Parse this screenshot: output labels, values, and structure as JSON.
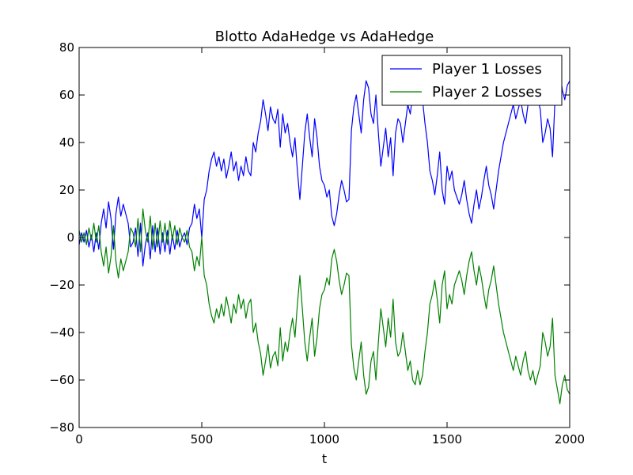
{
  "chart_data": {
    "type": "line",
    "title": "Blotto AdaHedge vs AdaHedge",
    "xlabel": "t",
    "ylabel": "",
    "xlim": [
      0,
      2000
    ],
    "ylim": [
      -80,
      80
    ],
    "xticks": [
      0,
      500,
      1000,
      1500,
      2000
    ],
    "xtick_labels": [
      "0",
      "500",
      "1000",
      "1500",
      "2000"
    ],
    "yticks": [
      -80,
      -60,
      -40,
      -20,
      0,
      20,
      40,
      60,
      80
    ],
    "ytick_labels": [
      "−80",
      "−60",
      "−40",
      "−20",
      "0",
      "20",
      "40",
      "60",
      "80"
    ],
    "grid": false,
    "legend_position": "top-right",
    "series": [
      {
        "name": "Player 1 Losses",
        "color": "#0000ff",
        "x": [
          0,
          10,
          20,
          30,
          40,
          50,
          60,
          70,
          80,
          90,
          100,
          110,
          120,
          130,
          140,
          150,
          160,
          170,
          180,
          190,
          200,
          210,
          220,
          230,
          240,
          250,
          260,
          270,
          280,
          290,
          300,
          310,
          320,
          330,
          340,
          350,
          360,
          370,
          380,
          390,
          400,
          410,
          420,
          430,
          440,
          450,
          460,
          470,
          480,
          490,
          500,
          510,
          520,
          530,
          540,
          550,
          560,
          570,
          580,
          590,
          600,
          610,
          620,
          630,
          640,
          650,
          660,
          670,
          680,
          690,
          700,
          710,
          720,
          730,
          740,
          750,
          760,
          770,
          780,
          790,
          800,
          810,
          820,
          830,
          840,
          850,
          860,
          870,
          880,
          890,
          900,
          910,
          920,
          930,
          940,
          950,
          960,
          970,
          980,
          990,
          1000,
          1010,
          1020,
          1030,
          1040,
          1050,
          1060,
          1070,
          1080,
          1090,
          1100,
          1110,
          1120,
          1130,
          1140,
          1150,
          1160,
          1170,
          1180,
          1190,
          1200,
          1210,
          1220,
          1230,
          1240,
          1250,
          1260,
          1270,
          1280,
          1290,
          1300,
          1310,
          1320,
          1330,
          1340,
          1350,
          1360,
          1370,
          1380,
          1390,
          1400,
          1410,
          1420,
          1430,
          1440,
          1450,
          1460,
          1470,
          1480,
          1490,
          1500,
          1510,
          1520,
          1530,
          1540,
          1550,
          1560,
          1570,
          1580,
          1590,
          1600,
          1610,
          1620,
          1630,
          1640,
          1650,
          1660,
          1670,
          1680,
          1690,
          1700,
          1710,
          1720,
          1730,
          1740,
          1750,
          1760,
          1770,
          1780,
          1790,
          1800,
          1810,
          1820,
          1830,
          1840,
          1850,
          1860,
          1870,
          1880,
          1890,
          1900,
          1910,
          1920,
          1930,
          1940,
          1950,
          1960,
          1970,
          1980,
          1990,
          2000
        ],
        "y": [
          -3,
          2,
          -2,
          3,
          -4,
          1,
          -6,
          2,
          -5,
          6,
          12,
          4,
          15,
          8,
          -5,
          10,
          17,
          9,
          14,
          10,
          6,
          -4,
          -2,
          4,
          -8,
          6,
          -12,
          -3,
          2,
          -9,
          5,
          -6,
          4,
          -7,
          2,
          -6,
          3,
          -7,
          1,
          -5,
          3,
          -4,
          0,
          2,
          -3,
          4,
          6,
          14,
          8,
          12,
          0,
          16,
          20,
          28,
          33,
          36,
          30,
          34,
          28,
          33,
          25,
          30,
          36,
          28,
          32,
          24,
          30,
          26,
          34,
          28,
          26,
          40,
          36,
          44,
          49,
          58,
          52,
          45,
          55,
          50,
          48,
          54,
          38,
          52,
          44,
          48,
          40,
          34,
          42,
          28,
          16,
          30,
          44,
          52,
          42,
          34,
          50,
          42,
          30,
          24,
          22,
          17,
          20,
          9,
          5,
          10,
          18,
          24,
          20,
          15,
          16,
          45,
          55,
          60,
          52,
          44,
          58,
          66,
          63,
          52,
          48,
          60,
          44,
          30,
          38,
          46,
          34,
          42,
          26,
          44,
          50,
          48,
          40,
          48,
          56,
          52,
          60,
          62,
          56,
          62,
          58,
          48,
          40,
          28,
          24,
          18,
          26,
          36,
          20,
          14,
          30,
          24,
          28,
          20,
          17,
          14,
          18,
          24,
          16,
          10,
          6,
          14,
          20,
          12,
          17,
          24,
          30,
          22,
          18,
          12,
          20,
          28,
          34,
          40,
          44,
          48,
          52,
          56,
          50,
          54,
          58,
          52,
          48,
          56,
          60,
          56,
          62,
          58,
          54,
          40,
          44,
          50,
          46,
          34,
          58,
          64,
          70,
          62,
          58,
          64,
          66
        ]
      },
      {
        "name": "Player 2 Losses",
        "color": "#008000",
        "x": [
          0,
          10,
          20,
          30,
          40,
          50,
          60,
          70,
          80,
          90,
          100,
          110,
          120,
          130,
          140,
          150,
          160,
          170,
          180,
          190,
          200,
          210,
          220,
          230,
          240,
          250,
          260,
          270,
          280,
          290,
          300,
          310,
          320,
          330,
          340,
          350,
          360,
          370,
          380,
          390,
          400,
          410,
          420,
          430,
          440,
          450,
          460,
          470,
          480,
          490,
          500,
          510,
          520,
          530,
          540,
          550,
          560,
          570,
          580,
          590,
          600,
          610,
          620,
          630,
          640,
          650,
          660,
          670,
          680,
          690,
          700,
          710,
          720,
          730,
          740,
          750,
          760,
          770,
          780,
          790,
          800,
          810,
          820,
          830,
          840,
          850,
          860,
          870,
          880,
          890,
          900,
          910,
          920,
          930,
          940,
          950,
          960,
          970,
          980,
          990,
          1000,
          1010,
          1020,
          1030,
          1040,
          1050,
          1060,
          1070,
          1080,
          1090,
          1100,
          1110,
          1120,
          1130,
          1140,
          1150,
          1160,
          1170,
          1180,
          1190,
          1200,
          1210,
          1220,
          1230,
          1240,
          1250,
          1260,
          1270,
          1280,
          1290,
          1300,
          1310,
          1320,
          1330,
          1340,
          1350,
          1360,
          1370,
          1380,
          1390,
          1400,
          1410,
          1420,
          1430,
          1440,
          1450,
          1460,
          1470,
          1480,
          1490,
          1500,
          1510,
          1520,
          1530,
          1540,
          1550,
          1560,
          1570,
          1580,
          1590,
          1600,
          1610,
          1620,
          1630,
          1640,
          1650,
          1660,
          1670,
          1680,
          1690,
          1700,
          1710,
          1720,
          1730,
          1740,
          1750,
          1760,
          1770,
          1780,
          1790,
          1800,
          1810,
          1820,
          1830,
          1840,
          1850,
          1860,
          1870,
          1880,
          1890,
          1900,
          1910,
          1920,
          1930,
          1940,
          1950,
          1960,
          1970,
          1980,
          1990,
          2000
        ],
        "y": [
          3,
          -2,
          2,
          -3,
          4,
          -1,
          6,
          -2,
          5,
          -6,
          -12,
          -4,
          -15,
          -8,
          5,
          -10,
          -17,
          -9,
          -14,
          -10,
          -6,
          4,
          2,
          -4,
          8,
          -6,
          12,
          3,
          -2,
          9,
          -5,
          6,
          -4,
          7,
          -2,
          6,
          -3,
          7,
          -1,
          5,
          -3,
          4,
          0,
          -2,
          3,
          -4,
          -6,
          -14,
          -8,
          -12,
          0,
          -16,
          -20,
          -28,
          -33,
          -36,
          -30,
          -34,
          -28,
          -33,
          -25,
          -30,
          -36,
          -28,
          -32,
          -24,
          -30,
          -26,
          -34,
          -28,
          -26,
          -40,
          -36,
          -44,
          -49,
          -58,
          -52,
          -45,
          -55,
          -50,
          -48,
          -54,
          -38,
          -52,
          -44,
          -48,
          -40,
          -34,
          -42,
          -28,
          -16,
          -30,
          -44,
          -52,
          -42,
          -34,
          -50,
          -42,
          -30,
          -24,
          -22,
          -17,
          -20,
          -9,
          -5,
          -10,
          -18,
          -24,
          -20,
          -15,
          -16,
          -45,
          -55,
          -60,
          -52,
          -44,
          -58,
          -66,
          -63,
          -52,
          -48,
          -60,
          -44,
          -30,
          -38,
          -46,
          -34,
          -42,
          -26,
          -44,
          -50,
          -48,
          -40,
          -48,
          -56,
          -52,
          -60,
          -62,
          -56,
          -62,
          -58,
          -48,
          -40,
          -28,
          -24,
          -18,
          -26,
          -36,
          -20,
          -14,
          -30,
          -24,
          -28,
          -20,
          -17,
          -14,
          -18,
          -24,
          -16,
          -10,
          -6,
          -14,
          -20,
          -12,
          -17,
          -24,
          -30,
          -22,
          -18,
          -12,
          -20,
          -28,
          -34,
          -40,
          -44,
          -48,
          -52,
          -56,
          -50,
          -54,
          -58,
          -52,
          -48,
          -56,
          -60,
          -56,
          -62,
          -58,
          -54,
          -40,
          -44,
          -50,
          -46,
          -34,
          -58,
          -64,
          -70,
          -62,
          -58,
          -64,
          -66
        ]
      }
    ]
  }
}
